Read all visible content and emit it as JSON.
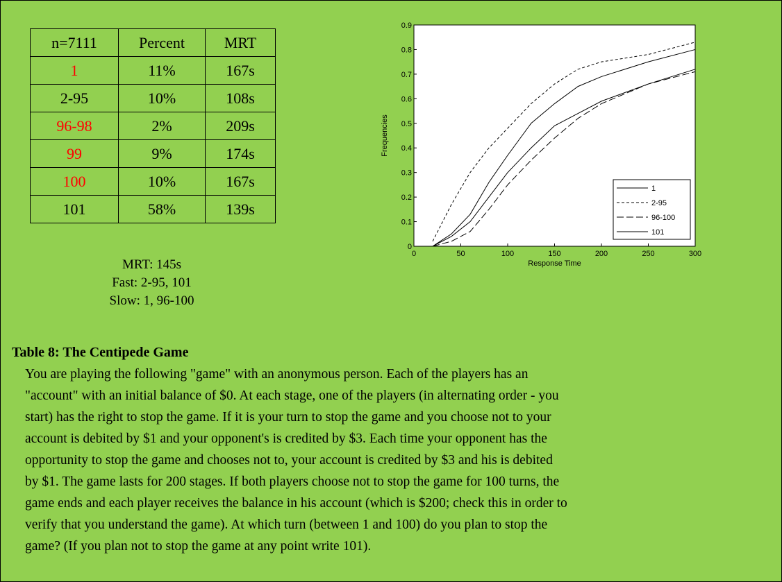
{
  "table": {
    "header": [
      "n=7111",
      "Percent",
      "MRT"
    ],
    "rows": [
      [
        "1",
        "11%",
        "167s"
      ],
      [
        "2-95",
        "10%",
        "108s"
      ],
      [
        "96-98",
        "2%",
        "209s"
      ],
      [
        "99",
        "9%",
        "174s"
      ],
      [
        "100",
        "10%",
        "167s"
      ],
      [
        "101",
        "58%",
        "139s"
      ]
    ],
    "first_cell_colors": [
      "#ff0000",
      "#000000",
      "#ff0000",
      "#ff0000",
      "#ff0000",
      "#000000"
    ]
  },
  "notes": [
    "MRT: 145s",
    "Fast: 2-95, 101",
    "Slow: 1, 96-100"
  ],
  "chart_data": {
    "type": "line",
    "xlabel": "Response Time",
    "ylabel": "Frequencies",
    "x": [
      20,
      40,
      60,
      80,
      100,
      125,
      150,
      175,
      200,
      250,
      300
    ],
    "series": [
      {
        "name": "1",
        "color": "#000000",
        "dash": "none",
        "values": [
          0,
          0.04,
          0.1,
          0.2,
          0.3,
          0.4,
          0.49,
          0.54,
          0.59,
          0.66,
          0.72
        ]
      },
      {
        "name": "2-95",
        "color": "#000000",
        "dash": "4,3",
        "values": [
          0.02,
          0.17,
          0.3,
          0.4,
          0.48,
          0.58,
          0.66,
          0.72,
          0.75,
          0.78,
          0.83
        ]
      },
      {
        "name": "96-100",
        "color": "#000000",
        "dash": "10,4",
        "values": [
          0,
          0.02,
          0.06,
          0.15,
          0.25,
          0.35,
          0.44,
          0.52,
          0.58,
          0.66,
          0.71
        ]
      },
      {
        "name": "101",
        "color": "#000000",
        "dash": "none",
        "values": [
          0,
          0.05,
          0.13,
          0.26,
          0.37,
          0.5,
          0.58,
          0.65,
          0.69,
          0.75,
          0.8
        ]
      }
    ],
    "xlim": [
      0,
      300
    ],
    "xticks": [
      0,
      50,
      100,
      150,
      200,
      250,
      300
    ],
    "ylim": [
      0,
      0.9
    ],
    "yticks": [
      0,
      0.1,
      0.2,
      0.3,
      0.4,
      0.5,
      0.6,
      0.7,
      0.8,
      0.9
    ],
    "legend": "lower right"
  },
  "caption": "Table 8: The Centipede Game",
  "paragraph": [
    "You are playing the following \"game\" with an anonymous person. Each of the players has an",
    "\"account\" with an initial balance of $0. At each stage, one of the players (in alternating order - you",
    "start) has the right to stop the game. If it is your turn to stop the game and you choose not to your",
    "account is debited by $1 and your opponent's is credited by $3. Each time your opponent has the",
    "opportunity to stop the game and chooses not to, your account is credited by $3 and his is debited",
    "by $1. The game lasts for 200 stages. If both players choose not to stop the game for 100 turns, the",
    "game ends and each player receives the balance in his account (which is $200; check this in order to",
    "verify that you understand the game). At which turn (between 1 and 100) do you plan to stop the",
    "game? (If you plan not to stop the game at any point write 101)."
  ]
}
